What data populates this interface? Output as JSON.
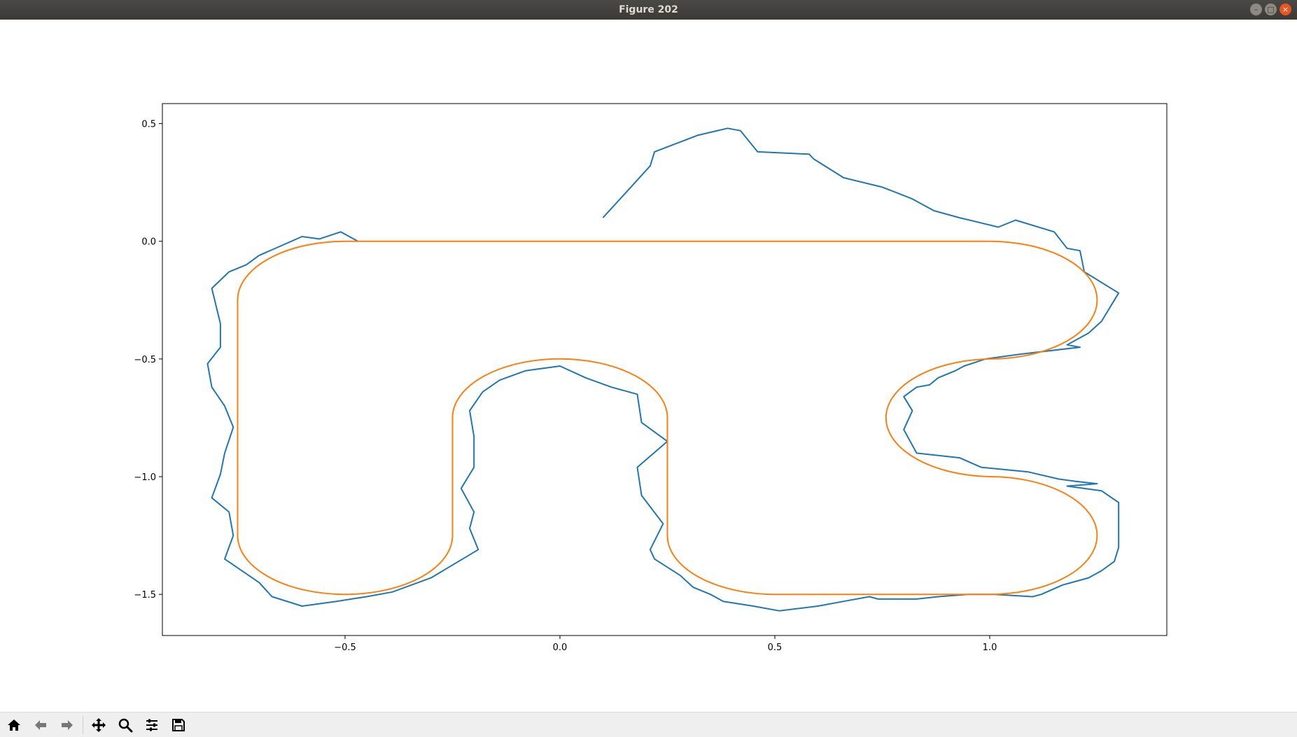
{
  "window": {
    "title": "Figure 202"
  },
  "toolbar": {
    "tools": [
      {
        "name": "home-icon"
      },
      {
        "name": "back-icon"
      },
      {
        "name": "forward-icon"
      },
      {
        "name": "pan-icon"
      },
      {
        "name": "zoom-icon"
      },
      {
        "name": "configure-subplots-icon"
      },
      {
        "name": "save-icon"
      }
    ]
  },
  "chart_data": {
    "type": "line",
    "title": "",
    "xlabel": "",
    "ylabel": "",
    "xlim": [
      -0.925,
      1.412
    ],
    "ylim": [
      -1.675,
      0.585
    ],
    "xticks": [
      -0.5,
      0.0,
      0.5,
      1.0
    ],
    "xtick_labels": [
      "−0.5",
      "0.0",
      "0.5",
      "1.0"
    ],
    "yticks": [
      0.5,
      0.0,
      -0.5,
      -1.0,
      -1.5
    ],
    "ytick_labels": [
      "0.5",
      "0.0",
      "−0.5",
      "−1.0",
      "−1.5"
    ],
    "grid": false,
    "series": [
      {
        "color": "#1f77b4",
        "points": [
          [
            0.1,
            0.1
          ],
          [
            0.21,
            0.32
          ],
          [
            0.22,
            0.38
          ],
          [
            0.32,
            0.45
          ],
          [
            0.39,
            0.48
          ],
          [
            0.42,
            0.47
          ],
          [
            0.46,
            0.38
          ],
          [
            0.58,
            0.37
          ],
          [
            0.59,
            0.35
          ],
          [
            0.66,
            0.27
          ],
          [
            0.75,
            0.23
          ],
          [
            0.82,
            0.18
          ],
          [
            0.87,
            0.13
          ],
          [
            0.93,
            0.1
          ],
          [
            1.02,
            0.06
          ],
          [
            1.06,
            0.09
          ],
          [
            1.15,
            0.04
          ],
          [
            1.18,
            -0.03
          ],
          [
            1.21,
            -0.04
          ],
          [
            1.22,
            -0.13
          ],
          [
            1.3,
            -0.22
          ],
          [
            1.26,
            -0.34
          ],
          [
            1.23,
            -0.39
          ],
          [
            1.18,
            -0.44
          ],
          [
            1.21,
            -0.45
          ],
          [
            1.07,
            -0.48
          ],
          [
            0.99,
            -0.5
          ],
          [
            0.94,
            -0.53
          ],
          [
            0.92,
            -0.55
          ],
          [
            0.88,
            -0.58
          ],
          [
            0.86,
            -0.61
          ],
          [
            0.83,
            -0.62
          ],
          [
            0.8,
            -0.66
          ],
          [
            0.82,
            -0.72
          ],
          [
            0.8,
            -0.8
          ],
          [
            0.83,
            -0.9
          ],
          [
            0.88,
            -0.91
          ],
          [
            0.93,
            -0.92
          ],
          [
            0.98,
            -0.96
          ],
          [
            1.09,
            -0.98
          ],
          [
            1.16,
            -1.01
          ],
          [
            1.2,
            -1.02
          ],
          [
            1.25,
            -1.03
          ],
          [
            1.18,
            -1.04
          ],
          [
            1.26,
            -1.06
          ],
          [
            1.3,
            -1.11
          ],
          [
            1.3,
            -1.2
          ],
          [
            1.3,
            -1.3
          ],
          [
            1.29,
            -1.36
          ],
          [
            1.26,
            -1.4
          ],
          [
            1.23,
            -1.43
          ],
          [
            1.17,
            -1.46
          ],
          [
            1.12,
            -1.5
          ],
          [
            1.1,
            -1.51
          ],
          [
            1.01,
            -1.5
          ],
          [
            0.95,
            -1.5
          ],
          [
            0.88,
            -1.51
          ],
          [
            0.83,
            -1.52
          ],
          [
            0.74,
            -1.52
          ],
          [
            0.72,
            -1.51
          ],
          [
            0.66,
            -1.53
          ],
          [
            0.6,
            -1.55
          ],
          [
            0.51,
            -1.57
          ],
          [
            0.45,
            -1.55
          ],
          [
            0.38,
            -1.53
          ],
          [
            0.35,
            -1.5
          ],
          [
            0.31,
            -1.47
          ],
          [
            0.28,
            -1.42
          ],
          [
            0.22,
            -1.35
          ],
          [
            0.21,
            -1.31
          ],
          [
            0.24,
            -1.2
          ],
          [
            0.19,
            -1.08
          ],
          [
            0.18,
            -0.96
          ],
          [
            0.25,
            -0.85
          ],
          [
            0.19,
            -0.77
          ],
          [
            0.18,
            -0.65
          ],
          [
            0.12,
            -0.62
          ],
          [
            0.06,
            -0.58
          ],
          [
            0.0,
            -0.53
          ],
          [
            -0.08,
            -0.55
          ],
          [
            -0.14,
            -0.59
          ],
          [
            -0.18,
            -0.64
          ],
          [
            -0.21,
            -0.72
          ],
          [
            -0.2,
            -0.83
          ],
          [
            -0.2,
            -0.96
          ],
          [
            -0.23,
            -1.05
          ],
          [
            -0.2,
            -1.15
          ],
          [
            -0.21,
            -1.22
          ],
          [
            -0.19,
            -1.31
          ],
          [
            -0.3,
            -1.43
          ],
          [
            -0.39,
            -1.49
          ],
          [
            -0.45,
            -1.51
          ],
          [
            -0.52,
            -1.53
          ],
          [
            -0.6,
            -1.55
          ],
          [
            -0.67,
            -1.51
          ],
          [
            -0.7,
            -1.45
          ],
          [
            -0.78,
            -1.35
          ],
          [
            -0.76,
            -1.25
          ],
          [
            -0.77,
            -1.15
          ],
          [
            -0.81,
            -1.09
          ],
          [
            -0.79,
            -0.99
          ],
          [
            -0.78,
            -0.9
          ],
          [
            -0.76,
            -0.79
          ],
          [
            -0.78,
            -0.7
          ],
          [
            -0.81,
            -0.62
          ],
          [
            -0.82,
            -0.52
          ],
          [
            -0.79,
            -0.45
          ],
          [
            -0.79,
            -0.35
          ],
          [
            -0.81,
            -0.2
          ],
          [
            -0.77,
            -0.13
          ],
          [
            -0.73,
            -0.1
          ],
          [
            -0.7,
            -0.06
          ],
          [
            -0.65,
            -0.02
          ],
          [
            -0.6,
            0.02
          ],
          [
            -0.56,
            0.01
          ],
          [
            -0.51,
            0.04
          ],
          [
            -0.48,
            0.01
          ],
          [
            -0.47,
            0.0
          ]
        ]
      },
      {
        "color": "#ff7f0e",
        "shape": "closed track of straight segments joined by semicircular turns",
        "vertices_clockwise": [
          [
            -0.5,
            0.0
          ],
          [
            1.0,
            0.0
          ],
          [
            1.0,
            -0.5
          ],
          [
            1.0,
            -1.0
          ],
          [
            1.0,
            -1.5
          ],
          [
            0.5,
            -1.5
          ],
          [
            0.25,
            -1.25
          ],
          [
            0.25,
            -0.75
          ],
          [
            -0.25,
            -0.75
          ],
          [
            -0.25,
            -1.25
          ],
          [
            -0.5,
            -1.5
          ],
          [
            -0.75,
            -1.25
          ],
          [
            -0.75,
            -0.25
          ]
        ],
        "arc_radius": 0.25
      }
    ]
  }
}
